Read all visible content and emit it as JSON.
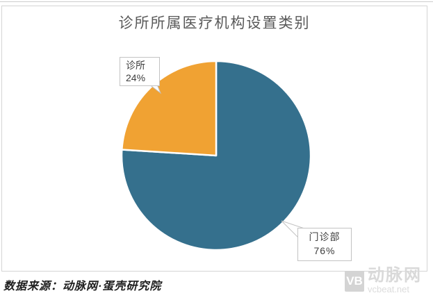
{
  "chart_data": {
    "type": "pie",
    "title": "诊所所属医疗机构设置类别",
    "start_angle_deg": 0,
    "direction": "clockwise",
    "slice_gap_color": "#ffffff",
    "legend": "none",
    "data_labels": "callout",
    "slices": [
      {
        "label": "门诊部",
        "value": 76,
        "percent_label": "76%",
        "color": "#35708d"
      },
      {
        "label": "诊所",
        "value": 24,
        "percent_label": "24%",
        "color": "#f0a233"
      }
    ]
  },
  "footer": {
    "source_note": "数据来源：动脉网·蛋壳研究院"
  },
  "watermark": {
    "logo": "VB",
    "brand": "动脉网",
    "domain": "vcbeat.net"
  },
  "colors": {
    "teal": "#35708d",
    "orange": "#f0a233",
    "title_text": "#595959",
    "frame_border": "#d4d4d4",
    "callout_border": "#c2c2c2",
    "watermark_gray": "#d9d9d9"
  }
}
